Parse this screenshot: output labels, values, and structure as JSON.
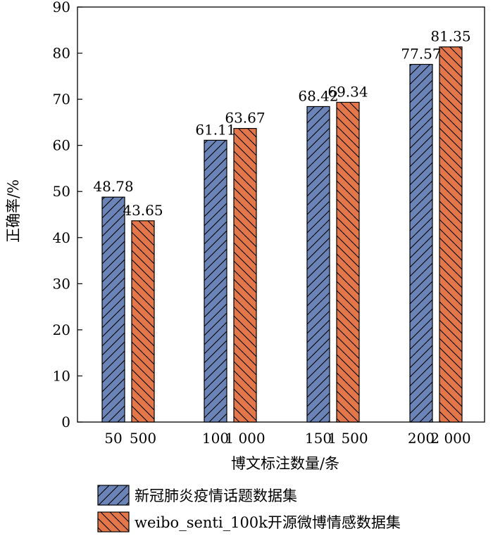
{
  "chart_data": {
    "type": "bar",
    "xlabel": "博文标注数量/条",
    "ylabel": "正确率/%",
    "ylim": [
      0,
      90
    ],
    "yticks": [
      0,
      10,
      20,
      30,
      40,
      50,
      60,
      70,
      80,
      90
    ],
    "grid": false,
    "legend_position": "bottom",
    "groups": [
      {
        "labels": [
          "50",
          "500"
        ]
      },
      {
        "labels": [
          "100",
          "1 000"
        ]
      },
      {
        "labels": [
          "150",
          "1 500"
        ]
      },
      {
        "labels": [
          "200",
          "2 000"
        ]
      }
    ],
    "series": [
      {
        "name": "新冠肺炎疫情话题数据集",
        "values": [
          48.78,
          61.11,
          68.42,
          77.57
        ],
        "value_labels": [
          "48.78",
          "61.11",
          "68.42",
          "77.57"
        ],
        "color": "#6b84b8",
        "hatch": "forward-diagonal"
      },
      {
        "name": "weibo_senti_100k开源微博情感数据集",
        "values": [
          43.65,
          63.67,
          69.34,
          81.35
        ],
        "value_labels": [
          "43.65",
          "63.67",
          "69.34",
          "81.35"
        ],
        "color": "#e3774a",
        "hatch": "backward-diagonal"
      }
    ]
  }
}
